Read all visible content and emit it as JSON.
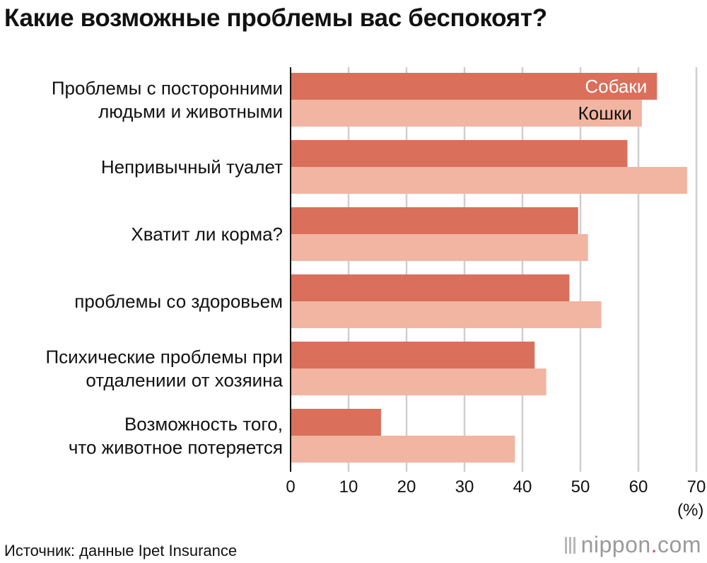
{
  "header": {
    "title": "Какие возможные проблемы вас беспокоят?"
  },
  "chart_data": {
    "type": "bar",
    "orientation": "horizontal",
    "title": "Какие возможные проблемы вас беспокоят?",
    "categories": [
      [
        "Проблемы с посторонними",
        "людьми и животными"
      ],
      [
        "Непривычный туалет"
      ],
      [
        "Хватит ли корма?"
      ],
      [
        "проблемы со здоровьем"
      ],
      [
        "Психические проблемы при",
        "отдалениии от хозяина"
      ],
      [
        "Возможность того,",
        "что животное потеряется"
      ]
    ],
    "series": [
      {
        "name": "Собаки",
        "color": "#da6f5b",
        "label_color": "#ffffff",
        "values": [
          63.2,
          58.1,
          49.6,
          48.1,
          42.1,
          15.6
        ]
      },
      {
        "name": "Кошки",
        "color": "#f2b5a1",
        "label_color": "#111111",
        "values": [
          60.6,
          68.4,
          51.3,
          53.6,
          44.1,
          38.7
        ]
      }
    ],
    "xlim": [
      0,
      70
    ],
    "xticks": [
      0,
      10,
      20,
      30,
      40,
      50,
      60,
      70
    ],
    "grid": true,
    "unit": "(%)",
    "legend": "inside-first-bars"
  },
  "footer": {
    "source": "Источник: данные Ipet Insurance",
    "brand_main": "nippon",
    "brand_dot": ".",
    "brand_tail": "com"
  }
}
